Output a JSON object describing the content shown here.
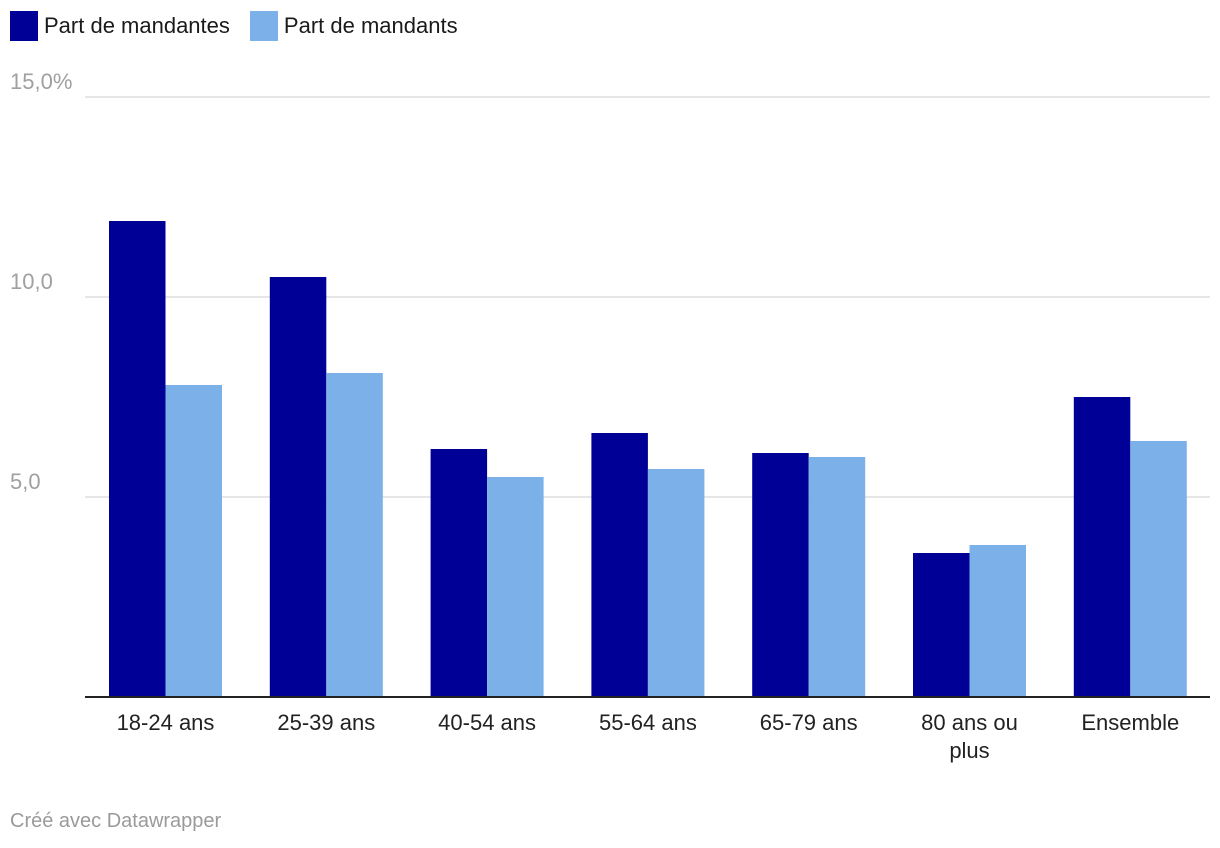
{
  "legend": {
    "series": [
      {
        "label": "Part de mandantes",
        "color": "#000096"
      },
      {
        "label": "Part de mandants",
        "color": "#7bb0e8"
      }
    ]
  },
  "footer": {
    "credit": "Créé avec Datawrapper"
  },
  "chart_data": {
    "type": "bar",
    "title": "",
    "xlabel": "",
    "ylabel": "",
    "ylim": [
      0,
      15
    ],
    "yticks": [
      {
        "value": 5,
        "label": "5,0"
      },
      {
        "value": 10,
        "label": "10,0"
      },
      {
        "value": 15,
        "label": "15,0%"
      }
    ],
    "grid": true,
    "legend_position": "top-left",
    "categories": [
      [
        "18-24 ans"
      ],
      [
        "25-39 ans"
      ],
      [
        "40-54 ans"
      ],
      [
        "55-64 ans"
      ],
      [
        "65-79 ans"
      ],
      [
        "80 ans ou",
        "plus"
      ],
      [
        "Ensemble"
      ]
    ],
    "series": [
      {
        "name": "Part de mandantes",
        "color": "#000096",
        "values": [
          11.9,
          10.5,
          6.2,
          6.6,
          6.1,
          3.6,
          7.5
        ]
      },
      {
        "name": "Part de mandants",
        "color": "#7bb0e8",
        "values": [
          7.8,
          8.1,
          5.5,
          5.7,
          6.0,
          3.8,
          6.4
        ]
      }
    ]
  }
}
